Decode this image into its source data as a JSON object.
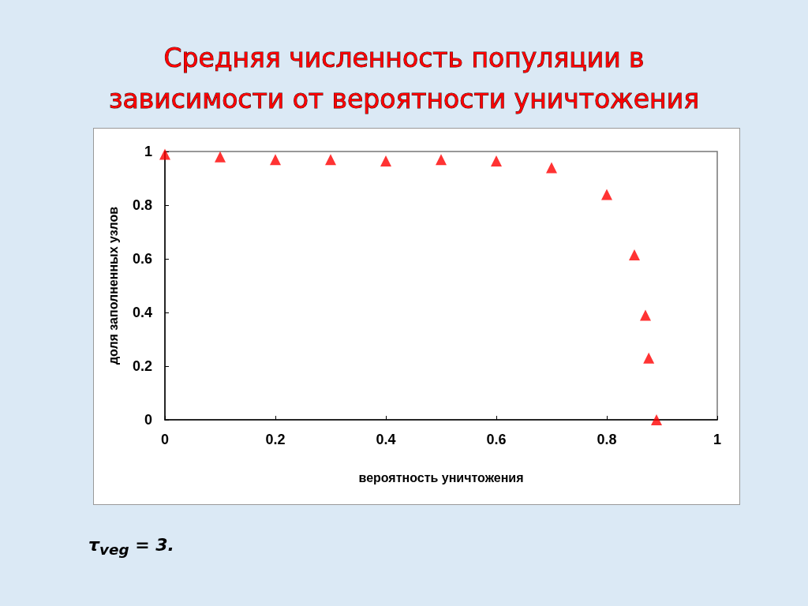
{
  "chart_data": {
    "type": "scatter",
    "title": "Средняя численность популяции в\nзависимости от вероятности уничтожения",
    "xlabel": "вероятность уничтожения",
    "ylabel": "доля заполненных узлов",
    "x": [
      0,
      0.1,
      0.2,
      0.3,
      0.4,
      0.5,
      0.6,
      0.7,
      0.8,
      0.85,
      0.87,
      0.876,
      0.89
    ],
    "series": [
      {
        "color": "#ff0000",
        "values": [
          0.99,
          0.98,
          0.97,
          0.97,
          0.965,
          0.97,
          0.965,
          0.94,
          0.84,
          0.615,
          0.39,
          0.23,
          0
        ]
      }
    ],
    "xlim": [
      0,
      1
    ],
    "xticks": [
      0,
      0.2,
      0.4,
      0.6,
      0.8,
      1
    ],
    "ylim": [
      0,
      1
    ],
    "yticks": [
      0,
      0.2,
      0.4,
      0.6,
      0.8,
      1
    ],
    "grid": false,
    "marker": "triangle",
    "annotations": [
      "τ$_{veg}$ = 3."
    ]
  }
}
